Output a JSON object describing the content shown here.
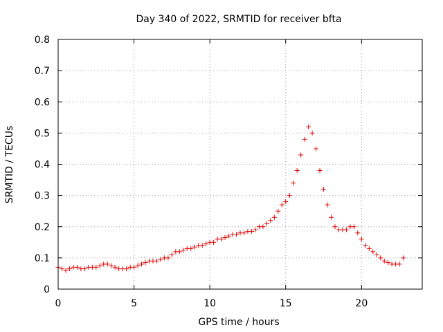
{
  "chart_data": {
    "type": "scatter",
    "title": "Day 340 of 2022, SRMTID for receiver bfta",
    "xlabel": "GPS time / hours",
    "ylabel": "SRMTID / TECUs",
    "xlim": [
      0,
      24
    ],
    "ylim": [
      0,
      0.8
    ],
    "xticks": [
      0,
      5,
      10,
      15,
      20
    ],
    "xtick_labels": [
      "0",
      "5",
      "10",
      "15",
      "20"
    ],
    "yticks": [
      0,
      0.1,
      0.2,
      0.3,
      0.4,
      0.5,
      0.6,
      0.7,
      0.8
    ],
    "ytick_labels": [
      "0",
      "0.1",
      "0.2",
      "0.3",
      "0.4",
      "0.5",
      "0.6",
      "0.7",
      "0.8"
    ],
    "grid": true,
    "marker": "plus",
    "color": "#e00000",
    "series": [
      {
        "name": "SRMTID",
        "x": [
          0.0,
          0.25,
          0.5,
          0.75,
          1.0,
          1.25,
          1.5,
          1.75,
          2.0,
          2.25,
          2.5,
          2.75,
          3.0,
          3.25,
          3.5,
          3.75,
          4.0,
          4.25,
          4.5,
          4.75,
          5.0,
          5.25,
          5.5,
          5.75,
          6.0,
          6.25,
          6.5,
          6.75,
          7.0,
          7.25,
          7.5,
          7.75,
          8.0,
          8.25,
          8.5,
          8.75,
          9.0,
          9.25,
          9.5,
          9.75,
          10.0,
          10.25,
          10.5,
          10.75,
          11.0,
          11.25,
          11.5,
          11.75,
          12.0,
          12.25,
          12.5,
          12.75,
          13.0,
          13.25,
          13.5,
          13.75,
          14.0,
          14.25,
          14.5,
          14.75,
          15.0,
          15.25,
          15.5,
          15.75,
          16.0,
          16.25,
          16.5,
          16.75,
          17.0,
          17.25,
          17.5,
          17.75,
          18.0,
          18.25,
          18.5,
          18.75,
          19.0,
          19.25,
          19.5,
          19.75,
          20.0,
          20.25,
          20.5,
          20.75,
          21.0,
          21.25,
          21.5,
          21.75,
          22.0,
          22.25,
          22.5,
          22.75
        ],
        "y": [
          0.07,
          0.065,
          0.06,
          0.065,
          0.07,
          0.07,
          0.065,
          0.065,
          0.07,
          0.07,
          0.07,
          0.075,
          0.08,
          0.08,
          0.075,
          0.07,
          0.065,
          0.065,
          0.065,
          0.07,
          0.07,
          0.075,
          0.08,
          0.085,
          0.09,
          0.09,
          0.09,
          0.095,
          0.1,
          0.1,
          0.11,
          0.12,
          0.12,
          0.125,
          0.13,
          0.13,
          0.135,
          0.14,
          0.14,
          0.145,
          0.15,
          0.15,
          0.16,
          0.16,
          0.165,
          0.17,
          0.175,
          0.175,
          0.18,
          0.18,
          0.185,
          0.185,
          0.19,
          0.2,
          0.2,
          0.21,
          0.22,
          0.23,
          0.25,
          0.27,
          0.28,
          0.3,
          0.34,
          0.38,
          0.43,
          0.48,
          0.52,
          0.5,
          0.45,
          0.38,
          0.32,
          0.27,
          0.23,
          0.2,
          0.19,
          0.19,
          0.19,
          0.2,
          0.2,
          0.18,
          0.16,
          0.14,
          0.13,
          0.12,
          0.11,
          0.1,
          0.09,
          0.085,
          0.08,
          0.08,
          0.08,
          0.1
        ]
      }
    ]
  }
}
